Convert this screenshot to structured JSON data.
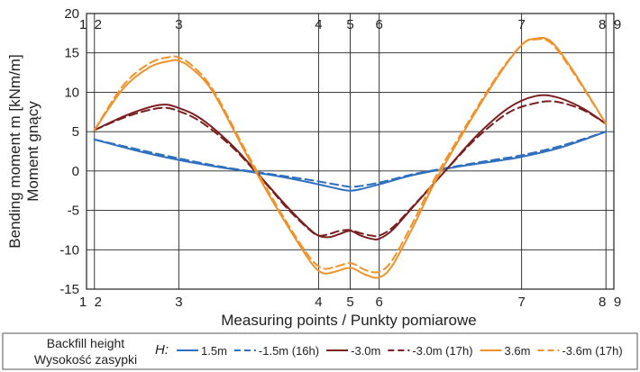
{
  "chart_data": {
    "type": "line",
    "xlabel": "Measuring points / Punkty pomiarowe",
    "ylabel_line1": "Bending moment m [kNm/m]",
    "ylabel_line2": "Moment gnący",
    "ylim": [
      -15,
      20
    ],
    "yticks": [
      -15,
      -10,
      -5,
      0,
      5,
      10,
      15,
      20
    ],
    "xlim": [
      0,
      100
    ],
    "measuring_points": [
      {
        "label": "1",
        "x": 0
      },
      {
        "label": "2",
        "x": 1.5
      },
      {
        "label": "3",
        "x": 17.5
      },
      {
        "label": "4",
        "x": 44
      },
      {
        "label": "5",
        "x": 50
      },
      {
        "label": "6",
        "x": 55.5
      },
      {
        "label": "7",
        "x": 82.5
      },
      {
        "label": "8",
        "x": 98.5
      },
      {
        "label": "9",
        "x": 100
      }
    ],
    "grid": true,
    "legend_title_line1": "Backfill height",
    "legend_title_line2": "Wysokość zasypki",
    "legend_symbol": "H:",
    "series": [
      {
        "name": "1.5m",
        "color": "#2e6fbf",
        "dash": false,
        "x": [
          1.5,
          10,
          17.5,
          26,
          35,
          42,
          48,
          50,
          52,
          56,
          62,
          70,
          78,
          82.5,
          90,
          98.5
        ],
        "y": [
          4.0,
          2.5,
          1.4,
          0.4,
          -0.5,
          -1.4,
          -2.3,
          -2.5,
          -2.3,
          -1.6,
          -0.5,
          0.5,
          1.3,
          1.8,
          3.0,
          5.0
        ]
      },
      {
        "name": "-1.5m (16h)",
        "color": "#2e6fbf",
        "dash": true,
        "x": [
          1.5,
          10,
          17.5,
          26,
          35,
          42,
          48,
          50,
          52,
          56,
          62,
          70,
          78,
          82.5,
          90,
          98.5
        ],
        "y": [
          4.0,
          2.7,
          1.6,
          0.5,
          -0.4,
          -1.1,
          -1.8,
          -2.0,
          -1.9,
          -1.4,
          -0.4,
          0.6,
          1.5,
          2.0,
          3.2,
          5.0
        ]
      },
      {
        "name": "-3.0m",
        "color": "#7a1f1f",
        "dash": false,
        "x": [
          1.5,
          8,
          14,
          17.5,
          22,
          28,
          34,
          38,
          42,
          44,
          46,
          48,
          50,
          52,
          54,
          55.5,
          58,
          62,
          68,
          74,
          80,
          85,
          89,
          94,
          98.5
        ],
        "y": [
          5.2,
          7.2,
          8.4,
          8.0,
          6.5,
          3.0,
          -1.5,
          -4.5,
          -7.2,
          -8.2,
          -8.4,
          -8.0,
          -7.6,
          -8.2,
          -8.6,
          -8.6,
          -7.5,
          -4.5,
          0.0,
          4.5,
          8.0,
          9.5,
          9.4,
          8.0,
          6.0
        ]
      },
      {
        "name": "-3.0m (17h)",
        "color": "#7a1f1f",
        "dash": true,
        "x": [
          1.5,
          8,
          14,
          17.5,
          22,
          28,
          34,
          38,
          42,
          44,
          46,
          48,
          50,
          52,
          54,
          55.5,
          58,
          62,
          68,
          74,
          80,
          85,
          89,
          94,
          98.5
        ],
        "y": [
          5.2,
          7.0,
          8.0,
          7.6,
          6.1,
          2.8,
          -1.6,
          -4.7,
          -7.3,
          -8.2,
          -8.0,
          -7.6,
          -7.5,
          -7.9,
          -8.2,
          -8.2,
          -7.2,
          -4.4,
          0.0,
          4.2,
          7.4,
          8.6,
          8.8,
          7.8,
          6.0
        ]
      },
      {
        "name": "3.6m",
        "color": "#f0922a",
        "dash": false,
        "x": [
          1.5,
          7,
          12,
          16,
          17.5,
          20,
          24,
          30,
          35,
          40,
          43,
          45,
          47,
          49,
          50,
          51,
          53,
          55.5,
          58,
          62,
          66,
          72,
          78,
          82.5,
          85,
          88,
          92,
          98.5
        ],
        "y": [
          5.2,
          10.5,
          13.2,
          14.0,
          14.0,
          13.0,
          10.0,
          2.5,
          -3.5,
          -9.0,
          -12.0,
          -13.0,
          -12.8,
          -12.4,
          -12.3,
          -12.5,
          -13.2,
          -13.5,
          -12.0,
          -7.0,
          -1.5,
          5.5,
          12.0,
          16.0,
          16.8,
          16.5,
          13.0,
          6.0
        ]
      },
      {
        "name": "-3.6m (17h)",
        "color": "#f0922a",
        "dash": true,
        "x": [
          1.5,
          7,
          12,
          16,
          17.5,
          20,
          24,
          30,
          35,
          40,
          43,
          45,
          47,
          49,
          50,
          51,
          53,
          55.5,
          58,
          62,
          66,
          72,
          78,
          82.5,
          85,
          88,
          92,
          98.5
        ],
        "y": [
          5.2,
          10.9,
          13.7,
          14.5,
          14.4,
          13.4,
          10.3,
          2.8,
          -3.2,
          -8.7,
          -11.5,
          -12.4,
          -12.2,
          -11.8,
          -11.7,
          -11.9,
          -12.6,
          -12.8,
          -11.3,
          -6.4,
          -1.0,
          5.8,
          12.2,
          16.0,
          16.7,
          16.3,
          12.8,
          6.0
        ]
      }
    ]
  }
}
